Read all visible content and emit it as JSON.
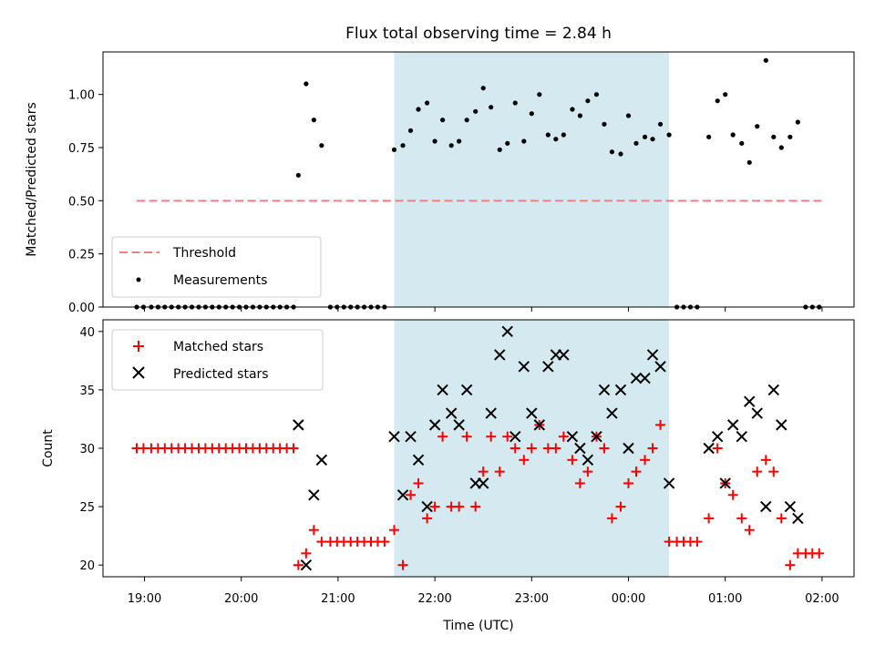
{
  "chart_data": {
    "type": "scatter",
    "title": "Flux total observing time = 2.84 h",
    "xlabel": "Time (UTC)",
    "x_ticks": [
      "19:00",
      "20:00",
      "21:00",
      "22:00",
      "23:00",
      "00:00",
      "01:00",
      "02:00"
    ],
    "shaded_span": {
      "x_start_hours": 21.58,
      "x_end_hours": 24.42,
      "color": "#d4eaf0"
    },
    "top_panel": {
      "ylabel": "Matched/Predicted stars",
      "ylim": [
        0,
        1.2
      ],
      "y_ticks": [
        "0.00",
        "0.25",
        "0.50",
        "0.75",
        "1.00"
      ],
      "threshold": {
        "name": "Threshold",
        "value": 0.5,
        "x_range": [
          18.92,
          26.0
        ],
        "color": "#f08080"
      },
      "measurements": {
        "name": "Measurements",
        "color": "#000000",
        "points": [
          [
            18.92,
            0
          ],
          [
            18.99,
            0
          ],
          [
            19.07,
            0
          ],
          [
            19.14,
            0
          ],
          [
            19.21,
            0
          ],
          [
            19.28,
            0
          ],
          [
            19.35,
            0
          ],
          [
            19.42,
            0
          ],
          [
            19.49,
            0
          ],
          [
            19.56,
            0
          ],
          [
            19.63,
            0
          ],
          [
            19.7,
            0
          ],
          [
            19.77,
            0
          ],
          [
            19.84,
            0
          ],
          [
            19.91,
            0
          ],
          [
            19.98,
            0
          ],
          [
            20.05,
            0
          ],
          [
            20.12,
            0
          ],
          [
            20.19,
            0
          ],
          [
            20.26,
            0
          ],
          [
            20.33,
            0
          ],
          [
            20.4,
            0
          ],
          [
            20.47,
            0
          ],
          [
            20.54,
            0
          ],
          [
            20.59,
            0.62
          ],
          [
            20.67,
            1.05
          ],
          [
            20.75,
            0.88
          ],
          [
            20.83,
            0.76
          ],
          [
            20.92,
            0
          ],
          [
            20.99,
            0
          ],
          [
            21.06,
            0
          ],
          [
            21.13,
            0
          ],
          [
            21.2,
            0
          ],
          [
            21.27,
            0
          ],
          [
            21.34,
            0
          ],
          [
            21.41,
            0
          ],
          [
            21.48,
            0
          ],
          [
            21.58,
            0.74
          ],
          [
            21.67,
            0.76
          ],
          [
            21.75,
            0.83
          ],
          [
            21.83,
            0.93
          ],
          [
            21.92,
            0.96
          ],
          [
            22.0,
            0.78
          ],
          [
            22.08,
            0.88
          ],
          [
            22.17,
            0.76
          ],
          [
            22.25,
            0.78
          ],
          [
            22.33,
            0.88
          ],
          [
            22.42,
            0.92
          ],
          [
            22.5,
            1.03
          ],
          [
            22.58,
            0.94
          ],
          [
            22.67,
            0.74
          ],
          [
            22.75,
            0.77
          ],
          [
            22.83,
            0.96
          ],
          [
            22.92,
            0.78
          ],
          [
            23.0,
            0.91
          ],
          [
            23.08,
            1.0
          ],
          [
            23.17,
            0.81
          ],
          [
            23.25,
            0.79
          ],
          [
            23.33,
            0.81
          ],
          [
            23.42,
            0.93
          ],
          [
            23.5,
            0.9
          ],
          [
            23.58,
            0.97
          ],
          [
            23.67,
            1.0
          ],
          [
            23.75,
            0.86
          ],
          [
            23.83,
            0.73
          ],
          [
            23.92,
            0.72
          ],
          [
            24.0,
            0.9
          ],
          [
            24.08,
            0.77
          ],
          [
            24.17,
            0.8
          ],
          [
            24.25,
            0.79
          ],
          [
            24.33,
            0.86
          ],
          [
            24.42,
            0.81
          ],
          [
            24.5,
            0
          ],
          [
            24.57,
            0
          ],
          [
            24.64,
            0
          ],
          [
            24.71,
            0
          ],
          [
            24.83,
            0.8
          ],
          [
            24.92,
            0.97
          ],
          [
            25.0,
            1.0
          ],
          [
            25.08,
            0.81
          ],
          [
            25.17,
            0.77
          ],
          [
            25.25,
            0.68
          ],
          [
            25.33,
            0.85
          ],
          [
            25.42,
            1.16
          ],
          [
            25.5,
            0.8
          ],
          [
            25.58,
            0.75
          ],
          [
            25.67,
            0.8
          ],
          [
            25.75,
            0.87
          ],
          [
            25.83,
            0
          ],
          [
            25.9,
            0
          ],
          [
            25.97,
            0
          ]
        ]
      }
    },
    "bottom_panel": {
      "ylabel": "Count",
      "ylim": [
        19,
        41
      ],
      "y_ticks": [
        "20",
        "25",
        "30",
        "35",
        "40"
      ],
      "matched": {
        "name": "Matched stars",
        "color": "#ff0000",
        "points": [
          [
            18.92,
            30
          ],
          [
            18.99,
            30
          ],
          [
            19.07,
            30
          ],
          [
            19.14,
            30
          ],
          [
            19.21,
            30
          ],
          [
            19.28,
            30
          ],
          [
            19.35,
            30
          ],
          [
            19.42,
            30
          ],
          [
            19.49,
            30
          ],
          [
            19.56,
            30
          ],
          [
            19.63,
            30
          ],
          [
            19.7,
            30
          ],
          [
            19.77,
            30
          ],
          [
            19.84,
            30
          ],
          [
            19.91,
            30
          ],
          [
            19.98,
            30
          ],
          [
            20.05,
            30
          ],
          [
            20.12,
            30
          ],
          [
            20.19,
            30
          ],
          [
            20.26,
            30
          ],
          [
            20.33,
            30
          ],
          [
            20.4,
            30
          ],
          [
            20.47,
            30
          ],
          [
            20.54,
            30
          ],
          [
            20.59,
            20
          ],
          [
            20.67,
            21
          ],
          [
            20.75,
            23
          ],
          [
            20.83,
            22
          ],
          [
            20.92,
            22
          ],
          [
            20.99,
            22
          ],
          [
            21.06,
            22
          ],
          [
            21.13,
            22
          ],
          [
            21.2,
            22
          ],
          [
            21.27,
            22
          ],
          [
            21.34,
            22
          ],
          [
            21.41,
            22
          ],
          [
            21.48,
            22
          ],
          [
            21.58,
            23
          ],
          [
            21.67,
            20
          ],
          [
            21.75,
            26
          ],
          [
            21.83,
            27
          ],
          [
            21.92,
            24
          ],
          [
            22.0,
            25
          ],
          [
            22.08,
            31
          ],
          [
            22.17,
            25
          ],
          [
            22.25,
            25
          ],
          [
            22.33,
            31
          ],
          [
            22.42,
            25
          ],
          [
            22.5,
            28
          ],
          [
            22.58,
            31
          ],
          [
            22.67,
            28
          ],
          [
            22.75,
            31
          ],
          [
            22.83,
            30
          ],
          [
            22.92,
            29
          ],
          [
            23.0,
            30
          ],
          [
            23.08,
            32
          ],
          [
            23.17,
            30
          ],
          [
            23.25,
            30
          ],
          [
            23.33,
            31
          ],
          [
            23.42,
            29
          ],
          [
            23.5,
            27
          ],
          [
            23.58,
            28
          ],
          [
            23.67,
            31
          ],
          [
            23.75,
            30
          ],
          [
            23.83,
            24
          ],
          [
            23.92,
            25
          ],
          [
            24.0,
            27
          ],
          [
            24.08,
            28
          ],
          [
            24.17,
            29
          ],
          [
            24.25,
            30
          ],
          [
            24.33,
            32
          ],
          [
            24.42,
            22
          ],
          [
            24.5,
            22
          ],
          [
            24.57,
            22
          ],
          [
            24.64,
            22
          ],
          [
            24.71,
            22
          ],
          [
            24.83,
            24
          ],
          [
            24.92,
            30
          ],
          [
            25.0,
            27
          ],
          [
            25.08,
            26
          ],
          [
            25.17,
            24
          ],
          [
            25.25,
            23
          ],
          [
            25.33,
            28
          ],
          [
            25.42,
            29
          ],
          [
            25.5,
            28
          ],
          [
            25.58,
            24
          ],
          [
            25.67,
            20
          ],
          [
            25.75,
            21
          ],
          [
            25.83,
            21
          ],
          [
            25.9,
            21
          ],
          [
            25.97,
            21
          ]
        ]
      },
      "predicted": {
        "name": "Predicted stars",
        "color": "#000000",
        "points": [
          [
            20.59,
            32
          ],
          [
            20.67,
            20
          ],
          [
            20.75,
            26
          ],
          [
            20.83,
            29
          ],
          [
            21.58,
            31
          ],
          [
            21.67,
            26
          ],
          [
            21.75,
            31
          ],
          [
            21.83,
            29
          ],
          [
            21.92,
            25
          ],
          [
            22.0,
            32
          ],
          [
            22.08,
            35
          ],
          [
            22.17,
            33
          ],
          [
            22.25,
            32
          ],
          [
            22.33,
            35
          ],
          [
            22.42,
            27
          ],
          [
            22.5,
            27
          ],
          [
            22.58,
            33
          ],
          [
            22.67,
            38
          ],
          [
            22.75,
            40
          ],
          [
            22.83,
            31
          ],
          [
            22.92,
            37
          ],
          [
            23.0,
            33
          ],
          [
            23.08,
            32
          ],
          [
            23.17,
            37
          ],
          [
            23.25,
            38
          ],
          [
            23.33,
            38
          ],
          [
            23.42,
            31
          ],
          [
            23.5,
            30
          ],
          [
            23.58,
            29
          ],
          [
            23.67,
            31
          ],
          [
            23.75,
            35
          ],
          [
            23.83,
            33
          ],
          [
            23.92,
            35
          ],
          [
            24.0,
            30
          ],
          [
            24.08,
            36
          ],
          [
            24.17,
            36
          ],
          [
            24.25,
            38
          ],
          [
            24.33,
            37
          ],
          [
            24.42,
            27
          ],
          [
            24.83,
            30
          ],
          [
            24.92,
            31
          ],
          [
            25.0,
            27
          ],
          [
            25.08,
            32
          ],
          [
            25.17,
            31
          ],
          [
            25.25,
            34
          ],
          [
            25.33,
            33
          ],
          [
            25.42,
            25
          ],
          [
            25.5,
            35
          ],
          [
            25.58,
            32
          ],
          [
            25.67,
            25
          ],
          [
            25.75,
            24
          ]
        ]
      }
    }
  }
}
